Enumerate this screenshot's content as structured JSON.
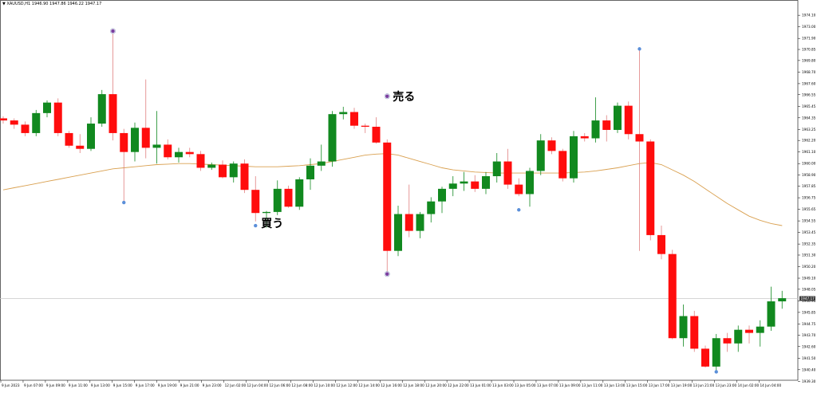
{
  "title_bar": {
    "symbol": "XAUUSD,H1",
    "ohlc": "1946.90 1947.86 1946.22 1947.17"
  },
  "colors": {
    "bull": "#11891f",
    "bear": "#ff0d0d",
    "ma": "#d9a050",
    "wick_bull": "#11891f",
    "wick_bear": "#e08080",
    "marker_purple": "#7b3fa0",
    "marker_blue": "#5b8fd9",
    "price_line": "#c8c8c8",
    "axis": "#000000"
  },
  "annotations": {
    "buy_label": "買う",
    "sell_label": "売る"
  },
  "chart_data": {
    "type": "candlestick",
    "title": "",
    "symbol": "XAUUSD",
    "timeframe": "H1",
    "current_price": "1947.17",
    "ylim": [
      1939.4,
      1975.4
    ],
    "y_ticks": [
      "1974.10",
      "1973.00",
      "1971.90",
      "1970.85",
      "1969.80",
      "1968.70",
      "1967.60",
      "1966.55",
      "1965.45",
      "1964.35",
      "1963.25",
      "1962.20",
      "1961.10",
      "1960.00",
      "1958.90",
      "1957.85",
      "1956.75",
      "1955.65",
      "1954.55",
      "1953.45",
      "1952.35",
      "1951.30",
      "1950.20",
      "1949.10",
      "1948.05",
      "1946.95",
      "1945.85",
      "1944.75",
      "1943.70",
      "1942.60",
      "1941.50",
      "1940.40",
      "1939.30"
    ],
    "x_ticks": [
      "9 Jun 2023",
      "9 Jun 07:00",
      "9 Jun 09:00",
      "9 Jun 11:00",
      "9 Jun 13:00",
      "9 Jun 15:00",
      "9 Jun 17:00",
      "9 Jun 19:00",
      "9 Jun 21:00",
      "9 Jun 23:00",
      "12 Jun 02:00",
      "12 Jun 04:00",
      "12 Jun 06:00",
      "12 Jun 08:00",
      "12 Jun 10:00",
      "12 Jun 12:00",
      "12 Jun 14:00",
      "12 Jun 16:00",
      "12 Jun 18:00",
      "12 Jun 20:00",
      "12 Jun 22:00",
      "13 Jun 01:00",
      "13 Jun 03:00",
      "13 Jun 05:00",
      "13 Jun 07:00",
      "13 Jun 09:00",
      "13 Jun 11:00",
      "13 Jun 13:00",
      "13 Jun 15:00",
      "13 Jun 17:00",
      "13 Jun 19:00",
      "13 Jun 21:00",
      "13 Jun 23:00",
      "14 Jun 02:00",
      "14 Jun 04:00"
    ],
    "candles": [
      {
        "o": 1964.3,
        "h": 1964.5,
        "l": 1963.8,
        "c": 1964.1
      },
      {
        "o": 1964.1,
        "h": 1964.3,
        "l": 1963.3,
        "c": 1963.7
      },
      {
        "o": 1963.7,
        "h": 1964.0,
        "l": 1962.6,
        "c": 1962.9
      },
      {
        "o": 1962.9,
        "h": 1965.1,
        "l": 1962.6,
        "c": 1964.8
      },
      {
        "o": 1964.8,
        "h": 1966.0,
        "l": 1964.4,
        "c": 1965.8
      },
      {
        "o": 1965.8,
        "h": 1966.2,
        "l": 1962.6,
        "c": 1962.9
      },
      {
        "o": 1962.9,
        "h": 1963.1,
        "l": 1961.5,
        "c": 1961.7
      },
      {
        "o": 1961.7,
        "h": 1962.8,
        "l": 1961.0,
        "c": 1961.4
      },
      {
        "o": 1961.4,
        "h": 1964.4,
        "l": 1961.2,
        "c": 1963.8
      },
      {
        "o": 1963.8,
        "h": 1967.0,
        "l": 1963.5,
        "c": 1966.6
      },
      {
        "o": 1966.6,
        "h": 1972.6,
        "l": 1962.2,
        "c": 1962.9
      },
      {
        "o": 1962.9,
        "h": 1963.3,
        "l": 1956.3,
        "c": 1961.1
      },
      {
        "o": 1961.1,
        "h": 1963.9,
        "l": 1960.2,
        "c": 1963.4
      },
      {
        "o": 1963.4,
        "h": 1968.0,
        "l": 1960.5,
        "c": 1961.5
      },
      {
        "o": 1961.5,
        "h": 1965.0,
        "l": 1960.0,
        "c": 1961.8
      },
      {
        "o": 1961.8,
        "h": 1962.3,
        "l": 1960.4,
        "c": 1960.6
      },
      {
        "o": 1960.6,
        "h": 1961.5,
        "l": 1960.1,
        "c": 1961.1
      },
      {
        "o": 1961.1,
        "h": 1961.5,
        "l": 1960.6,
        "c": 1960.9
      },
      {
        "o": 1960.9,
        "h": 1961.2,
        "l": 1959.3,
        "c": 1959.6
      },
      {
        "o": 1959.6,
        "h": 1960.1,
        "l": 1959.4,
        "c": 1959.9
      },
      {
        "o": 1959.9,
        "h": 1960.3,
        "l": 1958.6,
        "c": 1958.7
      },
      {
        "o": 1958.7,
        "h": 1960.2,
        "l": 1958.2,
        "c": 1960.0
      },
      {
        "o": 1960.0,
        "h": 1960.4,
        "l": 1957.2,
        "c": 1957.5
      },
      {
        "o": 1957.5,
        "h": 1958.8,
        "l": 1954.5,
        "c": 1955.3
      },
      {
        "o": 1955.3,
        "h": 1955.5,
        "l": 1953.9,
        "c": 1955.4
      },
      {
        "o": 1955.4,
        "h": 1958.4,
        "l": 1955.1,
        "c": 1957.6
      },
      {
        "o": 1957.6,
        "h": 1957.9,
        "l": 1955.8,
        "c": 1955.9
      },
      {
        "o": 1955.9,
        "h": 1958.7,
        "l": 1955.6,
        "c": 1958.5
      },
      {
        "o": 1958.5,
        "h": 1960.5,
        "l": 1957.5,
        "c": 1959.8
      },
      {
        "o": 1959.8,
        "h": 1961.8,
        "l": 1959.3,
        "c": 1960.2
      },
      {
        "o": 1960.2,
        "h": 1965.0,
        "l": 1959.7,
        "c": 1964.7
      },
      {
        "o": 1964.7,
        "h": 1965.4,
        "l": 1964.2,
        "c": 1964.9
      },
      {
        "o": 1964.9,
        "h": 1965.3,
        "l": 1963.3,
        "c": 1963.6
      },
      {
        "o": 1963.6,
        "h": 1963.8,
        "l": 1962.9,
        "c": 1963.5
      },
      {
        "o": 1963.5,
        "h": 1964.4,
        "l": 1961.9,
        "c": 1962.0
      },
      {
        "o": 1962.0,
        "h": 1962.3,
        "l": 1949.5,
        "c": 1951.7
      },
      {
        "o": 1951.7,
        "h": 1956.0,
        "l": 1951.2,
        "c": 1955.2
      },
      {
        "o": 1955.2,
        "h": 1958.0,
        "l": 1953.0,
        "c": 1953.6
      },
      {
        "o": 1953.6,
        "h": 1955.4,
        "l": 1952.9,
        "c": 1955.2
      },
      {
        "o": 1955.2,
        "h": 1956.8,
        "l": 1954.4,
        "c": 1956.4
      },
      {
        "o": 1956.4,
        "h": 1957.8,
        "l": 1955.3,
        "c": 1957.6
      },
      {
        "o": 1957.6,
        "h": 1958.8,
        "l": 1956.9,
        "c": 1958.1
      },
      {
        "o": 1958.1,
        "h": 1959.2,
        "l": 1957.4,
        "c": 1958.3
      },
      {
        "o": 1958.3,
        "h": 1958.9,
        "l": 1957.3,
        "c": 1957.6
      },
      {
        "o": 1957.6,
        "h": 1959.2,
        "l": 1957.1,
        "c": 1958.8
      },
      {
        "o": 1958.8,
        "h": 1961.0,
        "l": 1958.2,
        "c": 1960.2
      },
      {
        "o": 1960.2,
        "h": 1961.4,
        "l": 1957.6,
        "c": 1958.0
      },
      {
        "o": 1958.0,
        "h": 1958.6,
        "l": 1956.9,
        "c": 1957.1
      },
      {
        "o": 1957.1,
        "h": 1959.6,
        "l": 1955.9,
        "c": 1959.3
      },
      {
        "o": 1959.3,
        "h": 1962.8,
        "l": 1958.9,
        "c": 1962.2
      },
      {
        "o": 1962.2,
        "h": 1962.5,
        "l": 1960.9,
        "c": 1961.2
      },
      {
        "o": 1961.2,
        "h": 1961.4,
        "l": 1958.3,
        "c": 1958.6
      },
      {
        "o": 1958.6,
        "h": 1963.1,
        "l": 1958.2,
        "c": 1962.6
      },
      {
        "o": 1962.6,
        "h": 1962.9,
        "l": 1962.1,
        "c": 1962.4
      },
      {
        "o": 1962.4,
        "h": 1966.3,
        "l": 1962.0,
        "c": 1964.1
      },
      {
        "o": 1964.1,
        "h": 1964.6,
        "l": 1962.1,
        "c": 1963.2
      },
      {
        "o": 1963.2,
        "h": 1965.8,
        "l": 1962.9,
        "c": 1965.5
      },
      {
        "o": 1965.5,
        "h": 1965.9,
        "l": 1962.3,
        "c": 1962.8
      },
      {
        "o": 1962.8,
        "h": 1970.9,
        "l": 1951.7,
        "c": 1962.1
      },
      {
        "o": 1962.1,
        "h": 1962.3,
        "l": 1952.7,
        "c": 1953.2
      },
      {
        "o": 1953.2,
        "h": 1954.1,
        "l": 1950.9,
        "c": 1951.4
      },
      {
        "o": 1951.4,
        "h": 1951.8,
        "l": 1943.3,
        "c": 1943.4
      },
      {
        "o": 1943.4,
        "h": 1946.6,
        "l": 1942.6,
        "c": 1945.5
      },
      {
        "o": 1945.5,
        "h": 1946.0,
        "l": 1942.1,
        "c": 1942.4
      },
      {
        "o": 1942.4,
        "h": 1942.7,
        "l": 1940.6,
        "c": 1940.7
      },
      {
        "o": 1940.7,
        "h": 1943.8,
        "l": 1940.2,
        "c": 1943.4
      },
      {
        "o": 1943.4,
        "h": 1943.9,
        "l": 1942.1,
        "c": 1942.9
      },
      {
        "o": 1942.9,
        "h": 1944.6,
        "l": 1942.1,
        "c": 1944.2
      },
      {
        "o": 1944.2,
        "h": 1944.6,
        "l": 1942.9,
        "c": 1943.9
      },
      {
        "o": 1943.9,
        "h": 1945.1,
        "l": 1942.6,
        "c": 1944.5
      },
      {
        "o": 1944.5,
        "h": 1948.3,
        "l": 1944.1,
        "c": 1946.9
      },
      {
        "o": 1946.9,
        "h": 1947.9,
        "l": 1946.2,
        "c": 1947.2
      }
    ],
    "moving_average": [
      1957.5,
      1957.7,
      1957.9,
      1958.1,
      1958.3,
      1958.5,
      1958.7,
      1958.9,
      1959.1,
      1959.3,
      1959.5,
      1959.6,
      1959.7,
      1959.8,
      1959.9,
      1959.95,
      1960.0,
      1960.0,
      1959.95,
      1959.9,
      1959.85,
      1959.8,
      1959.75,
      1959.7,
      1959.7,
      1959.7,
      1959.75,
      1959.8,
      1959.9,
      1960.0,
      1960.2,
      1960.4,
      1960.6,
      1960.8,
      1960.9,
      1960.95,
      1960.8,
      1960.5,
      1960.2,
      1959.9,
      1959.6,
      1959.4,
      1959.3,
      1959.2,
      1959.15,
      1959.1,
      1959.1,
      1959.1,
      1959.1,
      1959.1,
      1959.1,
      1959.1,
      1959.15,
      1959.2,
      1959.3,
      1959.45,
      1959.6,
      1959.8,
      1960.0,
      1960.1,
      1959.9,
      1959.4,
      1958.9,
      1958.3,
      1957.6,
      1956.9,
      1956.2,
      1955.6,
      1955.0,
      1954.6,
      1954.3,
      1954.1
    ],
    "markers": [
      {
        "type": "sell",
        "candle": 10,
        "price": 1972.6
      },
      {
        "type": "buy",
        "candle": 11,
        "price": 1956.3
      },
      {
        "type": "buy",
        "candle": 23,
        "price": 1954.1,
        "label": "buy"
      },
      {
        "type": "sell",
        "candle": 35,
        "price": 1966.4,
        "label": "sell"
      },
      {
        "type": "sell",
        "candle": 35,
        "price": 1949.5
      },
      {
        "type": "buy",
        "candle": 47,
        "price": 1955.6
      },
      {
        "type": "buy",
        "candle": 58,
        "price": 1970.9
      },
      {
        "type": "buy",
        "candle": 65,
        "price": 1940.2
      }
    ]
  }
}
